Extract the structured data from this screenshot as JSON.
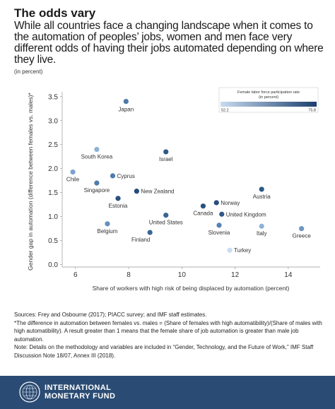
{
  "header": {
    "title": "The odds vary",
    "subtitle": "While all countries face a changing landscape when it comes to the automation of peoples’ jobs, women and men face very different odds of having their jobs automated depending on where they live.",
    "unit": "(in percent)"
  },
  "legend": {
    "title_line1": "Female labor force participation rate",
    "title_line2": "(in percent)",
    "min_label": "52.2",
    "max_label": "75.8",
    "color_low": "#c9dcef",
    "color_high": "#1c3f6e"
  },
  "chart_data": {
    "type": "scatter",
    "xlabel": "Share of workers with high risk of being displaced by automation (percent)",
    "ylabel": "Gender gap in automation (difference between females vs. males)*",
    "xlim": [
      5.5,
      15.2
    ],
    "ylim": [
      -0.05,
      3.6
    ],
    "xticks": [
      "6",
      "8",
      "10",
      "12",
      "14"
    ],
    "yticks": [
      "0.0",
      "0.5",
      "1.0",
      "1.5",
      "2.0",
      "2.5",
      "3.0",
      "3.5"
    ],
    "grid": false,
    "legend_position": "top-right",
    "color_encoding": "Female labor force participation rate (in percent)",
    "points": [
      {
        "label": "Japan",
        "x": 7.9,
        "y": 3.4,
        "color": "#4c79a8"
      },
      {
        "label": "South Korea",
        "x": 6.8,
        "y": 2.4,
        "color": "#8db2d6"
      },
      {
        "label": "Israel",
        "x": 9.4,
        "y": 2.35,
        "color": "#2e5888"
      },
      {
        "label": "Chile",
        "x": 5.9,
        "y": 1.93,
        "color": "#7aa4cf"
      },
      {
        "label": "Cyprus",
        "x": 7.4,
        "y": 1.85,
        "color": "#4f7cab"
      },
      {
        "label": "Singapore",
        "x": 6.8,
        "y": 1.7,
        "color": "#4f7cab"
      },
      {
        "label": "Austria",
        "x": 13.0,
        "y": 1.57,
        "color": "#2e5888"
      },
      {
        "label": "New Zealand",
        "x": 8.3,
        "y": 1.53,
        "color": "#254d7c"
      },
      {
        "label": "Estonia",
        "x": 7.6,
        "y": 1.38,
        "color": "#2a527f"
      },
      {
        "label": "Norway",
        "x": 11.3,
        "y": 1.29,
        "color": "#254d7c"
      },
      {
        "label": "Canada",
        "x": 10.8,
        "y": 1.22,
        "color": "#2a527f"
      },
      {
        "label": "United Kingdom",
        "x": 11.5,
        "y": 1.05,
        "color": "#2e5888"
      },
      {
        "label": "United States",
        "x": 9.4,
        "y": 1.03,
        "color": "#3a6593"
      },
      {
        "label": "Belgium",
        "x": 7.2,
        "y": 0.85,
        "color": "#6690bc"
      },
      {
        "label": "Slovenia",
        "x": 11.4,
        "y": 0.82,
        "color": "#5582b1"
      },
      {
        "label": "Italy",
        "x": 13.0,
        "y": 0.8,
        "color": "#8db2d6"
      },
      {
        "label": "Greece",
        "x": 14.5,
        "y": 0.75,
        "color": "#6e97c2"
      },
      {
        "label": "Finland",
        "x": 8.8,
        "y": 0.67,
        "color": "#3a6593"
      },
      {
        "label": "Turkey",
        "x": 11.8,
        "y": 0.3,
        "color": "#c9dcef"
      }
    ]
  },
  "notes": {
    "sources": "Sources: Frey and Osbourne (2017); PIACC survey; and IMF staff estimates.",
    "footnote": "*The difference in automation between females vs. males = (Share of females with high automatibility)/(Share of males with high automatibility). A result greater than 1 means that the female share of job automation is greater than male job automation.",
    "note": "Note: Details on the methodology and variables are included in “Gender, Technology, and the Future of Work,” IMF Staff Discussion Note 18/07, Annex III (2018)."
  },
  "footer": {
    "org_line1": "INTERNATIONAL",
    "org_line2": "MONETARY FUND",
    "logo_icon": "imf-seal-icon",
    "background": "#2a4b73"
  }
}
